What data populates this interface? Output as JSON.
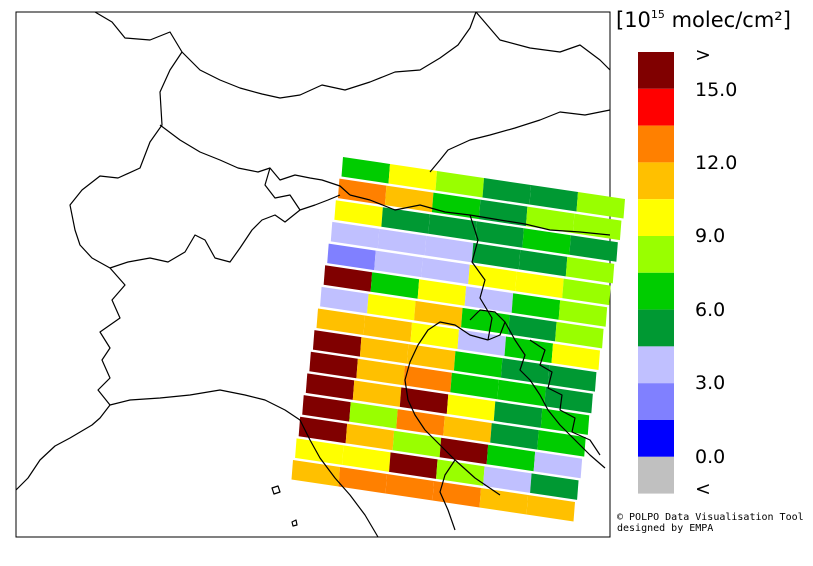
{
  "legend": {
    "unit_prefix": "[10",
    "unit_exp": "15",
    "unit_suffix": " molec/cm²]",
    "colors": [
      "#800000",
      "#ff0000",
      "#ff8000",
      "#ffc000",
      "#ffff00",
      "#99ff00",
      "#00cc00",
      "#009933",
      "#c0c0ff",
      "#8080ff",
      "#0000ff",
      "#c0c0c0"
    ],
    "labels": [
      ">",
      "15.0",
      "12.0",
      "9.0",
      "6.0",
      "3.0",
      "0.0",
      "<"
    ]
  },
  "credit": {
    "line1": "© POLPO Data Visualisation Tool",
    "line2": "designed by EMPA"
  },
  "grid_colors": [
    [
      "#00cc00",
      "#ffff00",
      "#99ff00",
      "#009933",
      "#009933",
      "#99ff00"
    ],
    [
      "#ff8000",
      "#ffc000",
      "#00cc00",
      "#009933",
      "#99ff00",
      "#99ff00"
    ],
    [
      "#ffff00",
      "#009933",
      "#009933",
      "#009933",
      "#00cc00",
      "#009933"
    ],
    [
      "#c0c0ff",
      "#c0c0ff",
      "#c0c0ff",
      "#009933",
      "#009933",
      "#99ff00"
    ],
    [
      "#8080ff",
      "#c0c0ff",
      "#c0c0ff",
      "#ffff00",
      "#ffff00",
      "#99ff00"
    ],
    [
      "#800000",
      "#00cc00",
      "#ffff00",
      "#c0c0ff",
      "#00cc00",
      "#99ff00"
    ],
    [
      "#c0c0ff",
      "#ffff00",
      "#ffc000",
      "#00cc00",
      "#009933",
      "#99ff00"
    ],
    [
      "#ffc000",
      "#ffc000",
      "#ffff00",
      "#c0c0ff",
      "#00cc00",
      "#ffff00"
    ],
    [
      "#800000",
      "#ffc000",
      "#ffc000",
      "#00cc00",
      "#009933",
      "#009933"
    ],
    [
      "#800000",
      "#ffc000",
      "#ff8000",
      "#00cc00",
      "#00cc00",
      "#009933"
    ],
    [
      "#800000",
      "#ffc000",
      "#800000",
      "#ffff00",
      "#009933",
      "#00cc00"
    ],
    [
      "#800000",
      "#99ff00",
      "#ff8000",
      "#ffc000",
      "#009933",
      "#00cc00"
    ],
    [
      "#800000",
      "#ffc000",
      "#99ff00",
      "#800000",
      "#00cc00",
      "#c0c0ff"
    ],
    [
      "#ffff00",
      "#ffff00",
      "#800000",
      "#99ff00",
      "#c0c0ff",
      "#009933"
    ],
    [
      "#ffc000",
      "#ff8000",
      "#ff8000",
      "#ff8000",
      "#ffc000",
      "#ffc000"
    ]
  ]
}
